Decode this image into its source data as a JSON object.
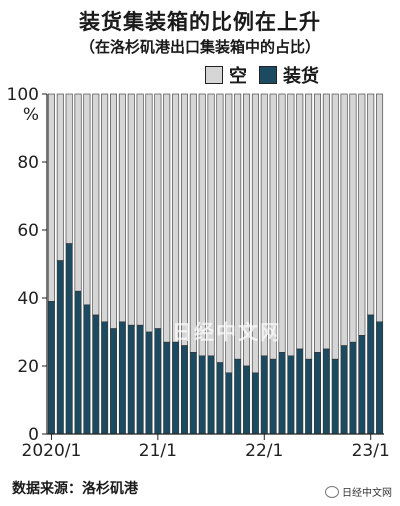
{
  "title": "装货集装箱的比例在上升",
  "subtitle": "（在洛杉矶港出口集装箱中的占比）",
  "legend": {
    "empty_label": "空",
    "loaded_label": "装货",
    "empty_color": "#d6d6d6",
    "loaded_color": "#1c4a60"
  },
  "source": "数据来源：洛杉矶港",
  "watermark": "日经中文网",
  "footer_brand": "日经中文网",
  "chart_data": {
    "type": "bar",
    "stacked": true,
    "title": "装货集装箱的比例在上升",
    "subtitle": "（在洛杉矶港出口集装箱中的占比）",
    "ylabel": "%",
    "ylim": [
      0,
      100
    ],
    "yticks": [
      0,
      20,
      40,
      60,
      80,
      100
    ],
    "x_tick_labels": [
      {
        "index": 0,
        "label": "2020/1"
      },
      {
        "index": 12,
        "label": "21/1"
      },
      {
        "index": 24,
        "label": "22/1"
      },
      {
        "index": 36,
        "label": "23/1"
      }
    ],
    "categories": [
      "2020/1",
      "2020/2",
      "2020/3",
      "2020/4",
      "2020/5",
      "2020/6",
      "2020/7",
      "2020/8",
      "2020/9",
      "2020/10",
      "2020/11",
      "2020/12",
      "2021/1",
      "2021/2",
      "2021/3",
      "2021/4",
      "2021/5",
      "2021/6",
      "2021/7",
      "2021/8",
      "2021/9",
      "2021/10",
      "2021/11",
      "2021/12",
      "2022/1",
      "2022/2",
      "2022/3",
      "2022/4",
      "2022/5",
      "2022/6",
      "2022/7",
      "2022/8",
      "2022/9",
      "2022/10",
      "2022/11",
      "2022/12",
      "2023/1",
      "2023/2"
    ],
    "series": [
      {
        "name": "装货",
        "values": [
          39,
          51,
          56,
          42,
          38,
          35,
          33,
          31,
          33,
          32,
          32,
          30,
          31,
          27,
          27,
          26,
          24,
          23,
          23,
          21,
          18,
          22,
          20,
          18,
          23,
          22,
          24,
          23,
          25,
          22,
          24,
          25,
          22,
          26,
          27,
          29,
          35,
          33
        ]
      },
      {
        "name": "空",
        "values": [
          61,
          49,
          44,
          58,
          62,
          65,
          67,
          69,
          67,
          68,
          68,
          70,
          69,
          73,
          73,
          74,
          76,
          77,
          77,
          79,
          82,
          78,
          80,
          82,
          77,
          78,
          76,
          77,
          75,
          78,
          76,
          75,
          78,
          74,
          73,
          71,
          65,
          67
        ]
      }
    ],
    "grid": false,
    "legend_position": "top-right"
  }
}
